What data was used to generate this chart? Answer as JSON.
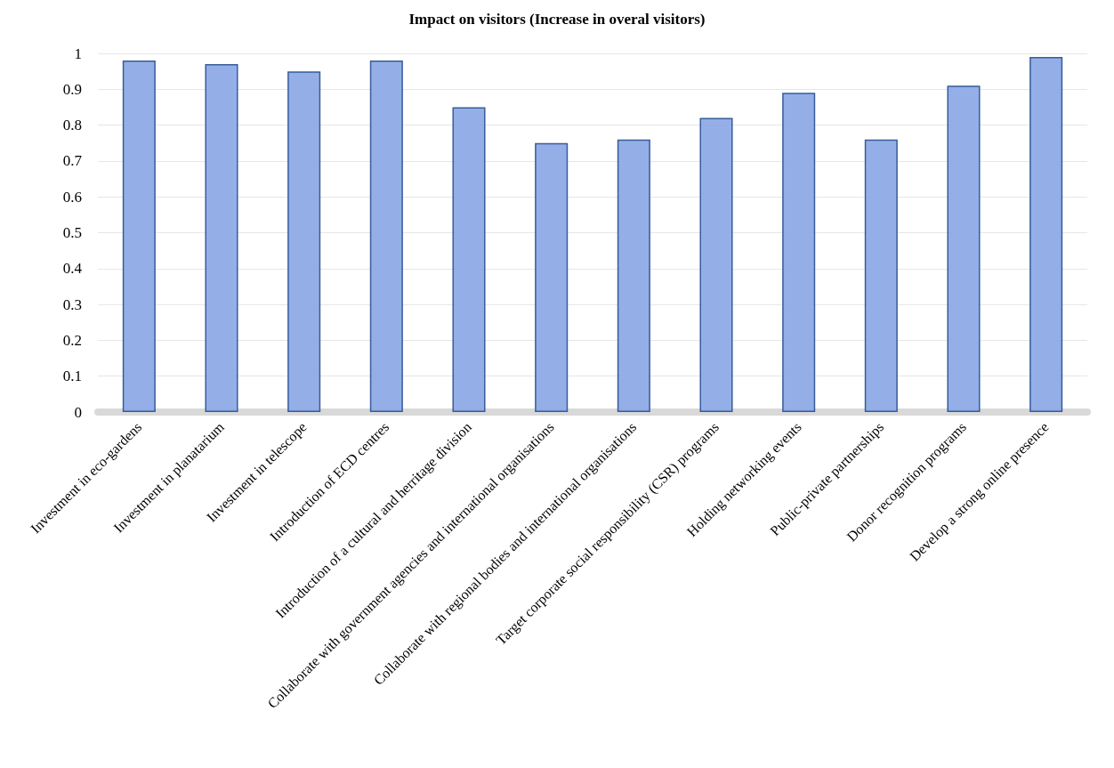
{
  "chart_data": {
    "type": "bar",
    "title": "Impact on visitors (Increase in overal visitors)",
    "categories": [
      "Investment in eco-gardens",
      "Investment in planatarium",
      "Investment in telescope",
      "Introduction of ECD centres",
      "Introduction of a cultural and herritage division",
      "Collaborate with government agencies and international organisations",
      "Collaborate with regional bodies and international organisations",
      "Target corporate social responsibility (CSR) programs",
      "Holding networking events",
      "Public-private partnerships",
      "Donor recognition programs",
      "Develop a strong online presence"
    ],
    "values": [
      0.98,
      0.97,
      0.95,
      0.98,
      0.85,
      0.75,
      0.76,
      0.82,
      0.89,
      0.76,
      0.91,
      0.99
    ],
    "color": "#8eabe6",
    "ylim": [
      0,
      1
    ],
    "yticks": [
      0,
      0.1,
      0.2,
      0.3,
      0.4,
      0.5,
      0.6,
      0.7,
      0.8,
      0.9,
      1
    ],
    "grid": "y"
  }
}
